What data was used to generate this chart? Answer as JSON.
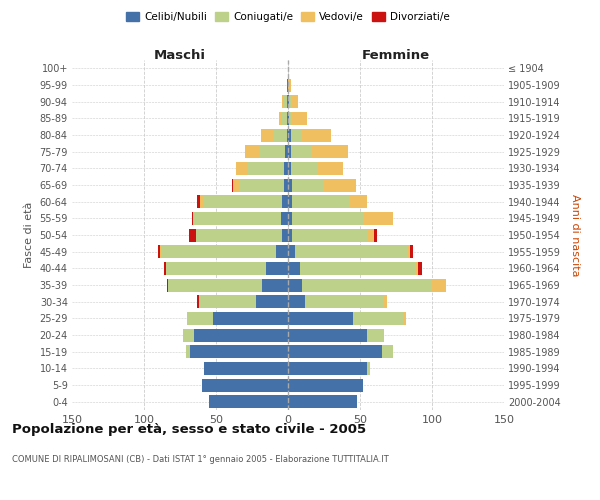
{
  "age_groups": [
    "0-4",
    "5-9",
    "10-14",
    "15-19",
    "20-24",
    "25-29",
    "30-34",
    "35-39",
    "40-44",
    "45-49",
    "50-54",
    "55-59",
    "60-64",
    "65-69",
    "70-74",
    "75-79",
    "80-84",
    "85-89",
    "90-94",
    "95-99",
    "100+"
  ],
  "birth_years": [
    "2000-2004",
    "1995-1999",
    "1990-1994",
    "1985-1989",
    "1980-1984",
    "1975-1979",
    "1970-1974",
    "1965-1969",
    "1960-1964",
    "1955-1959",
    "1950-1954",
    "1945-1949",
    "1940-1944",
    "1935-1939",
    "1930-1934",
    "1925-1929",
    "1920-1924",
    "1915-1919",
    "1910-1914",
    "1905-1909",
    "≤ 1904"
  ],
  "colors": {
    "celibi": "#4472a8",
    "coniugati": "#bdd18a",
    "vedovi": "#f0c060",
    "divorziati": "#cc1111"
  },
  "maschi": {
    "celibi": [
      55,
      60,
      58,
      68,
      65,
      52,
      22,
      18,
      15,
      8,
      4,
      5,
      4,
      3,
      3,
      2,
      1,
      1,
      1,
      1,
      0
    ],
    "coniugati": [
      0,
      0,
      0,
      3,
      8,
      18,
      40,
      65,
      70,
      80,
      60,
      60,
      55,
      30,
      25,
      18,
      9,
      3,
      2,
      0,
      0
    ],
    "vedovi": [
      0,
      0,
      0,
      0,
      0,
      0,
      0,
      0,
      0,
      1,
      0,
      1,
      2,
      5,
      8,
      10,
      9,
      2,
      1,
      0,
      0
    ],
    "divorziati": [
      0,
      0,
      0,
      0,
      0,
      0,
      1,
      1,
      1,
      1,
      5,
      1,
      2,
      1,
      0,
      0,
      0,
      0,
      0,
      0,
      0
    ]
  },
  "femmine": {
    "nubili": [
      48,
      52,
      55,
      65,
      55,
      45,
      12,
      10,
      8,
      5,
      3,
      3,
      3,
      3,
      2,
      2,
      2,
      1,
      1,
      0,
      0
    ],
    "coniugate": [
      0,
      0,
      2,
      8,
      12,
      35,
      55,
      90,
      80,
      78,
      52,
      50,
      40,
      22,
      18,
      15,
      8,
      2,
      1,
      0,
      0
    ],
    "vedove": [
      0,
      0,
      0,
      0,
      0,
      2,
      2,
      10,
      2,
      2,
      5,
      20,
      12,
      22,
      18,
      25,
      20,
      10,
      5,
      2,
      0
    ],
    "divorziate": [
      0,
      0,
      0,
      0,
      0,
      0,
      0,
      0,
      3,
      2,
      2,
      0,
      0,
      0,
      0,
      0,
      0,
      0,
      0,
      0,
      0
    ]
  },
  "xlim": 150,
  "title": "Popolazione per età, sesso e stato civile - 2005",
  "subtitle": "COMUNE DI RIPALIMOSANI (CB) - Dati ISTAT 1° gennaio 2005 - Elaborazione TUTTITALIA.IT",
  "ylabel_left": "Fasce di età",
  "ylabel_right": "Anni di nascita",
  "xlabel_left": "Maschi",
  "xlabel_right": "Femmine",
  "legend_labels": [
    "Celibi/Nubili",
    "Coniugati/e",
    "Vedovi/e",
    "Divorziati/e"
  ],
  "legend_colors": [
    "#4472a8",
    "#bdd18a",
    "#f0c060",
    "#cc1111"
  ],
  "background_color": "#ffffff",
  "grid_color": "#cccccc"
}
